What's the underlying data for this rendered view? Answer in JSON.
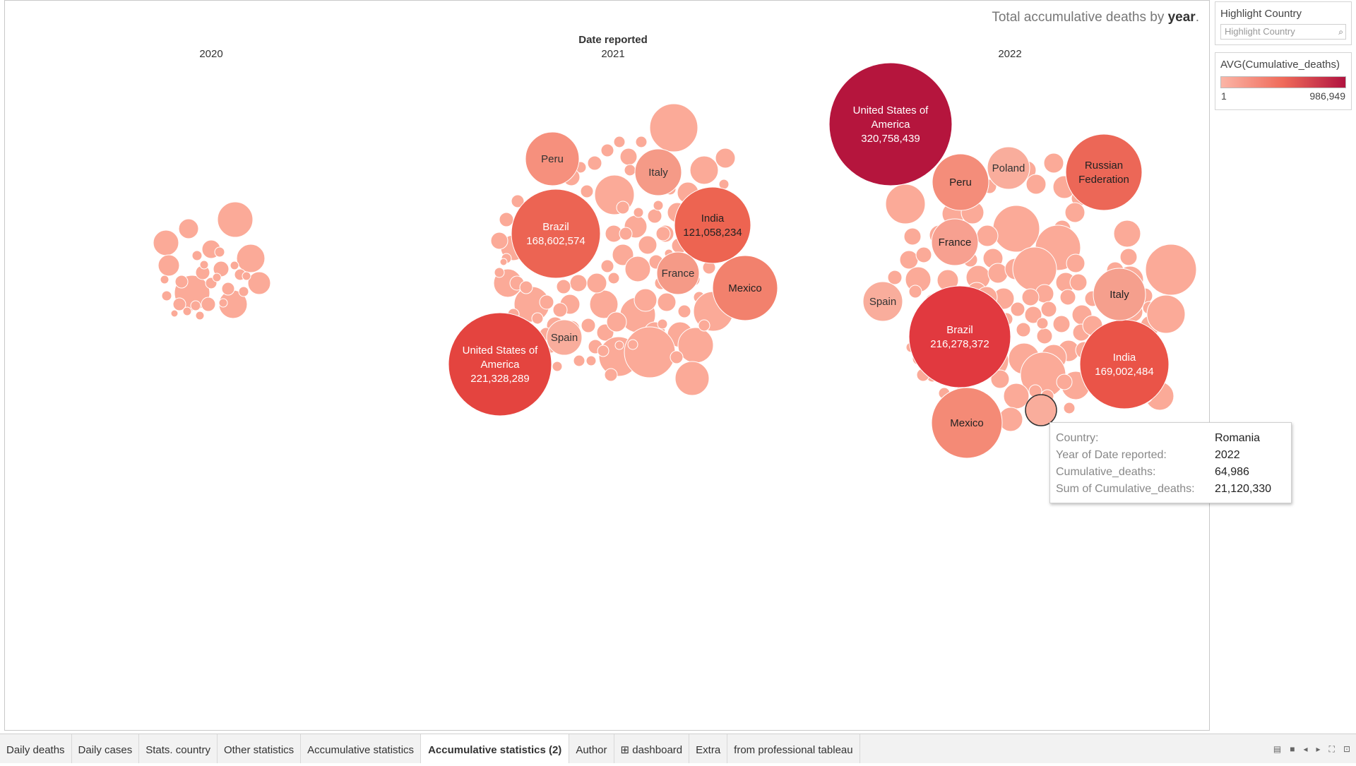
{
  "header": {
    "title_prefix": "Total accumulative deaths by ",
    "title_bold": "year",
    "title_suffix": ".",
    "column_header": "Date reported",
    "years": [
      "2020",
      "2021",
      "2022"
    ]
  },
  "filter": {
    "title": "Highlight Country",
    "placeholder": "Highlight Country",
    "icon": "search-icon"
  },
  "legend": {
    "title": "AVG(Cumulative_deaths)",
    "min": "1",
    "max": "986,949",
    "colors": [
      "#fbb5a6",
      "#ef6a5a",
      "#b0133f"
    ]
  },
  "tooltip": {
    "rows": [
      {
        "key": "Country:",
        "value": "Romania"
      },
      {
        "key": "Year of Date reported:",
        "value": "2022"
      },
      {
        "key": "Cumulative_deaths:",
        "value": "64,986"
      },
      {
        "key": "Sum of Cumulative_deaths:",
        "value": "21,120,330"
      }
    ]
  },
  "chart_data": {
    "type": "packed-bubble",
    "title": "Total accumulative deaths by year.",
    "column_header": "Date reported",
    "size_measure": "Sum of Cumulative_deaths",
    "color_measure": "AVG(Cumulative_deaths)",
    "labeled_bubbles": [
      {
        "year": "2021",
        "country": "United States of America",
        "value": 221328289
      },
      {
        "year": "2021",
        "country": "Brazil",
        "value": 168602574
      },
      {
        "year": "2021",
        "country": "India",
        "value": 121058234
      },
      {
        "year": "2021",
        "country": "Mexico",
        "value": null
      },
      {
        "year": "2021",
        "country": "Peru",
        "value": null
      },
      {
        "year": "2021",
        "country": "Italy",
        "value": null
      },
      {
        "year": "2021",
        "country": "France",
        "value": null
      },
      {
        "year": "2021",
        "country": "Spain",
        "value": null
      },
      {
        "year": "2022",
        "country": "United States of America",
        "value": 320758439
      },
      {
        "year": "2022",
        "country": "Brazil",
        "value": 216278372
      },
      {
        "year": "2022",
        "country": "India",
        "value": 169002484
      },
      {
        "year": "2022",
        "country": "Russian Federation",
        "value": null
      },
      {
        "year": "2022",
        "country": "Mexico",
        "value": null
      },
      {
        "year": "2022",
        "country": "Peru",
        "value": null
      },
      {
        "year": "2022",
        "country": "Poland",
        "value": null
      },
      {
        "year": "2022",
        "country": "France",
        "value": null
      },
      {
        "year": "2022",
        "country": "Spain",
        "value": null
      },
      {
        "year": "2022",
        "country": "Italy",
        "value": null
      },
      {
        "year": "2022",
        "country": "Romania",
        "value": 21120330
      }
    ]
  },
  "tabs": [
    {
      "label": "Daily deaths",
      "active": false
    },
    {
      "label": "Daily cases",
      "active": false
    },
    {
      "label": "Stats. country",
      "active": false
    },
    {
      "label": "Other statistics",
      "active": false
    },
    {
      "label": "Accumulative statistics",
      "active": false
    },
    {
      "label": "Accumulative statistics (2)",
      "active": true
    },
    {
      "label": "Author",
      "active": false
    },
    {
      "label": "⊞ dashboard",
      "active": false
    },
    {
      "label": "Extra",
      "active": false
    },
    {
      "label": "from professional tableau",
      "active": false
    }
  ],
  "nav_icons": [
    "grid-view-icon",
    "sheet-view-icon",
    "prev-sheet-icon",
    "next-sheet-icon",
    "fullscreen-icon",
    "present-icon"
  ]
}
